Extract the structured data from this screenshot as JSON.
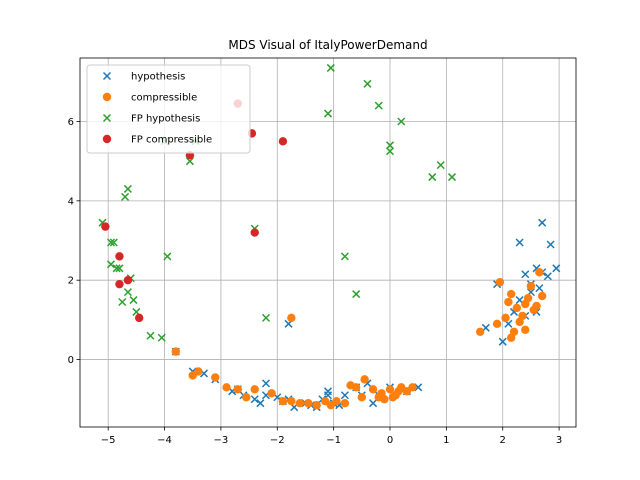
{
  "chart_data": {
    "type": "scatter",
    "title": "MDS Visual of ItalyPowerDemand",
    "xlabel": "",
    "ylabel": "",
    "xlim": [
      -5.5,
      3.3
    ],
    "ylim": [
      -1.7,
      7.6
    ],
    "xticks": [
      -5,
      -4,
      -3,
      -2,
      -1,
      0,
      1,
      2,
      3
    ],
    "yticks": [
      0,
      2,
      4,
      6
    ],
    "grid": true,
    "legend_position": "top-left",
    "series": [
      {
        "name": "hypothesis",
        "marker": "x",
        "color": "#1f77b4",
        "points": [
          [
            -3.8,
            0.2
          ],
          [
            -3.5,
            -0.3
          ],
          [
            -3.3,
            -0.35
          ],
          [
            -3.1,
            -0.5
          ],
          [
            -2.8,
            -0.8
          ],
          [
            -2.7,
            -0.75
          ],
          [
            -2.6,
            -0.9
          ],
          [
            -2.4,
            -1.0
          ],
          [
            -2.3,
            -1.1
          ],
          [
            -2.2,
            -0.9
          ],
          [
            -2.2,
            -0.6
          ],
          [
            -2.0,
            -0.95
          ],
          [
            -1.9,
            -1.05
          ],
          [
            -1.8,
            -1.0
          ],
          [
            -1.7,
            -1.2
          ],
          [
            -1.5,
            -1.1
          ],
          [
            -1.4,
            -1.15
          ],
          [
            -1.3,
            -1.2
          ],
          [
            -1.2,
            -1.0
          ],
          [
            -1.1,
            -0.9
          ],
          [
            -1.1,
            -0.8
          ],
          [
            -1.0,
            -1.1
          ],
          [
            -0.9,
            -1.15
          ],
          [
            -0.8,
            -0.9
          ],
          [
            -0.6,
            -0.7
          ],
          [
            -0.5,
            -0.9
          ],
          [
            -0.4,
            -0.6
          ],
          [
            -0.3,
            -1.1
          ],
          [
            -0.2,
            -0.9
          ],
          [
            0.0,
            -0.7
          ],
          [
            0.2,
            -0.75
          ],
          [
            0.3,
            -0.8
          ],
          [
            0.5,
            -0.7
          ],
          [
            -1.8,
            0.9
          ],
          [
            1.7,
            0.8
          ],
          [
            1.9,
            1.9
          ],
          [
            2.0,
            0.45
          ],
          [
            2.1,
            0.9
          ],
          [
            2.2,
            1.2
          ],
          [
            2.3,
            1.5
          ],
          [
            2.3,
            2.95
          ],
          [
            2.4,
            2.15
          ],
          [
            2.5,
            1.9
          ],
          [
            2.5,
            1.7
          ],
          [
            2.6,
            2.3
          ],
          [
            2.65,
            1.8
          ],
          [
            2.7,
            2.2
          ],
          [
            2.7,
            3.45
          ],
          [
            2.8,
            2.1
          ],
          [
            2.85,
            2.9
          ],
          [
            2.95,
            2.3
          ],
          [
            2.4,
            1.1
          ],
          [
            2.6,
            1.2
          ]
        ]
      },
      {
        "name": "compressible",
        "marker": "o",
        "color": "#ff7f0e",
        "points": [
          [
            -3.8,
            0.2
          ],
          [
            -3.5,
            -0.4
          ],
          [
            -3.4,
            -0.3
          ],
          [
            -3.1,
            -0.45
          ],
          [
            -2.9,
            -0.7
          ],
          [
            -2.7,
            -0.75
          ],
          [
            -2.55,
            -0.95
          ],
          [
            -2.4,
            -0.75
          ],
          [
            -2.1,
            -0.85
          ],
          [
            -1.9,
            -1.05
          ],
          [
            -1.75,
            -1.05
          ],
          [
            -1.6,
            -1.1
          ],
          [
            -1.45,
            -1.1
          ],
          [
            -1.3,
            -1.15
          ],
          [
            -1.15,
            -1.05
          ],
          [
            -1.05,
            -1.15
          ],
          [
            -0.95,
            -1.05
          ],
          [
            -0.8,
            -1.1
          ],
          [
            -0.7,
            -0.65
          ],
          [
            -0.6,
            -0.7
          ],
          [
            -0.5,
            -0.95
          ],
          [
            -0.45,
            -0.5
          ],
          [
            -0.3,
            -0.75
          ],
          [
            -0.15,
            -0.85
          ],
          [
            -0.1,
            -1.0
          ],
          [
            0.0,
            -0.75
          ],
          [
            0.1,
            -0.9
          ],
          [
            0.2,
            -0.7
          ],
          [
            0.3,
            -0.8
          ],
          [
            0.4,
            -0.7
          ],
          [
            -0.2,
            -0.95
          ],
          [
            0.05,
            -0.95
          ],
          [
            0.15,
            -0.8
          ],
          [
            -1.75,
            1.05
          ],
          [
            1.6,
            0.7
          ],
          [
            1.9,
            0.9
          ],
          [
            1.95,
            1.95
          ],
          [
            2.05,
            1.05
          ],
          [
            2.1,
            1.45
          ],
          [
            2.15,
            1.65
          ],
          [
            2.2,
            0.7
          ],
          [
            2.25,
            1.3
          ],
          [
            2.3,
            0.95
          ],
          [
            2.35,
            1.1
          ],
          [
            2.4,
            1.4
          ],
          [
            2.45,
            1.55
          ],
          [
            2.5,
            1.85
          ],
          [
            2.55,
            1.25
          ],
          [
            2.6,
            1.35
          ],
          [
            2.65,
            2.2
          ],
          [
            2.7,
            1.6
          ],
          [
            2.4,
            0.75
          ],
          [
            2.15,
            0.55
          ]
        ]
      },
      {
        "name": "FP hypothesis",
        "marker": "x",
        "color": "#2ca02c",
        "points": [
          [
            -5.1,
            3.45
          ],
          [
            -4.95,
            2.95
          ],
          [
            -4.9,
            2.95
          ],
          [
            -4.95,
            2.4
          ],
          [
            -4.85,
            2.3
          ],
          [
            -4.8,
            2.3
          ],
          [
            -4.75,
            1.45
          ],
          [
            -4.7,
            4.1
          ],
          [
            -4.65,
            4.3
          ],
          [
            -4.65,
            1.7
          ],
          [
            -4.6,
            2.05
          ],
          [
            -4.55,
            1.5
          ],
          [
            -4.5,
            1.2
          ],
          [
            -4.25,
            0.6
          ],
          [
            -4.05,
            0.55
          ],
          [
            -3.95,
            2.6
          ],
          [
            -3.55,
            5.0
          ],
          [
            -3.45,
            5.5
          ],
          [
            -4.0,
            5.5
          ],
          [
            -2.4,
            3.3
          ],
          [
            -2.2,
            1.05
          ],
          [
            -1.1,
            6.2
          ],
          [
            -1.05,
            7.35
          ],
          [
            -0.8,
            2.6
          ],
          [
            -0.6,
            1.65
          ],
          [
            -0.4,
            6.95
          ],
          [
            -0.2,
            6.4
          ],
          [
            0.0,
            5.4
          ],
          [
            0.0,
            5.25
          ],
          [
            0.2,
            6.0
          ],
          [
            0.75,
            4.6
          ],
          [
            0.9,
            4.9
          ],
          [
            1.1,
            4.6
          ]
        ]
      },
      {
        "name": "FP compressible",
        "marker": "o",
        "color": "#d62728",
        "points": [
          [
            -5.05,
            3.35
          ],
          [
            -4.8,
            2.6
          ],
          [
            -4.8,
            1.9
          ],
          [
            -4.65,
            2.0
          ],
          [
            -4.45,
            1.05
          ],
          [
            -3.55,
            5.15
          ],
          [
            -2.7,
            6.45
          ],
          [
            -2.45,
            5.7
          ],
          [
            -2.4,
            3.2
          ],
          [
            -1.9,
            5.5
          ]
        ]
      }
    ]
  }
}
